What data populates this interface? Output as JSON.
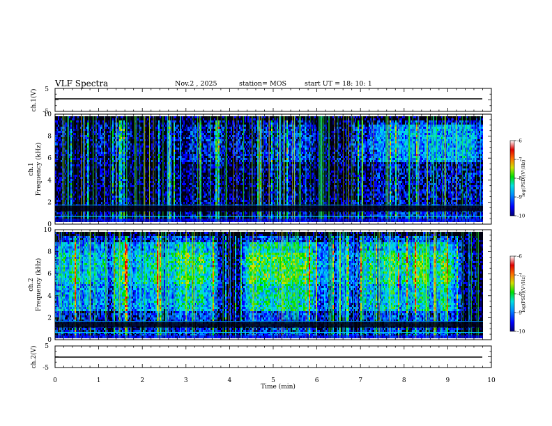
{
  "header": {
    "title": "VLF Spectra",
    "date": "Nov.2  , 2025",
    "station": "station= MOS",
    "start_ut": "start  UT  =   18: 10: 1"
  },
  "chart_data": [
    {
      "type": "line",
      "name": "ch1-voltage",
      "ylabel": "ch.1(V)",
      "ylim": [
        -5,
        5
      ],
      "yticks": [
        "5",
        "-5"
      ],
      "xlim": [
        0,
        10
      ],
      "values_summary": "near-constant trace just below 0 V for the full 10 minutes"
    },
    {
      "type": "heatmap",
      "name": "ch1-spectrogram",
      "ylabel": "ch.1\nFrequency (kHz)",
      "ylabel_line1": "ch.1",
      "ylabel_line2": "Frequency (kHz)",
      "ylim": [
        0,
        10
      ],
      "yticks": [
        "0",
        "2",
        "4",
        "6",
        "8",
        "10"
      ],
      "xlim": [
        0,
        9.83
      ],
      "colorbar": {
        "label": "log(PSD)(V²/Hz)",
        "range": [
          -10,
          -6
        ],
        "ticks": [
          "-6",
          "-7",
          "-8",
          "-9",
          "-10"
        ]
      }
    },
    {
      "type": "heatmap",
      "name": "ch2-spectrogram",
      "ylabel": "ch.2\nFrequency (kHz)",
      "ylabel_line1": "ch.2",
      "ylabel_line2": "Frequency (kHz)",
      "ylim": [
        0,
        10
      ],
      "yticks": [
        "0",
        "2",
        "4",
        "6",
        "8",
        "10"
      ],
      "xlim": [
        0,
        9.83
      ],
      "colorbar": {
        "label": "log(PSD)(V²/Hz)",
        "range": [
          -10,
          -6
        ],
        "ticks": [
          "-6",
          "-7",
          "-8",
          "-9",
          "-10"
        ]
      }
    },
    {
      "type": "line",
      "name": "ch2-voltage",
      "ylabel": "ch.2(V)",
      "ylim": [
        -5,
        5
      ],
      "yticks": [
        "5",
        "-5"
      ],
      "xlim": [
        0,
        10
      ],
      "values_summary": "near-constant trace just below 0 V for the full 10 minutes"
    }
  ],
  "xaxis": {
    "label": "Time  (min)",
    "range": [
      0,
      10
    ],
    "ticks": [
      "0",
      "1",
      "2",
      "3",
      "4",
      "5",
      "6",
      "7",
      "8",
      "9",
      "10"
    ]
  }
}
